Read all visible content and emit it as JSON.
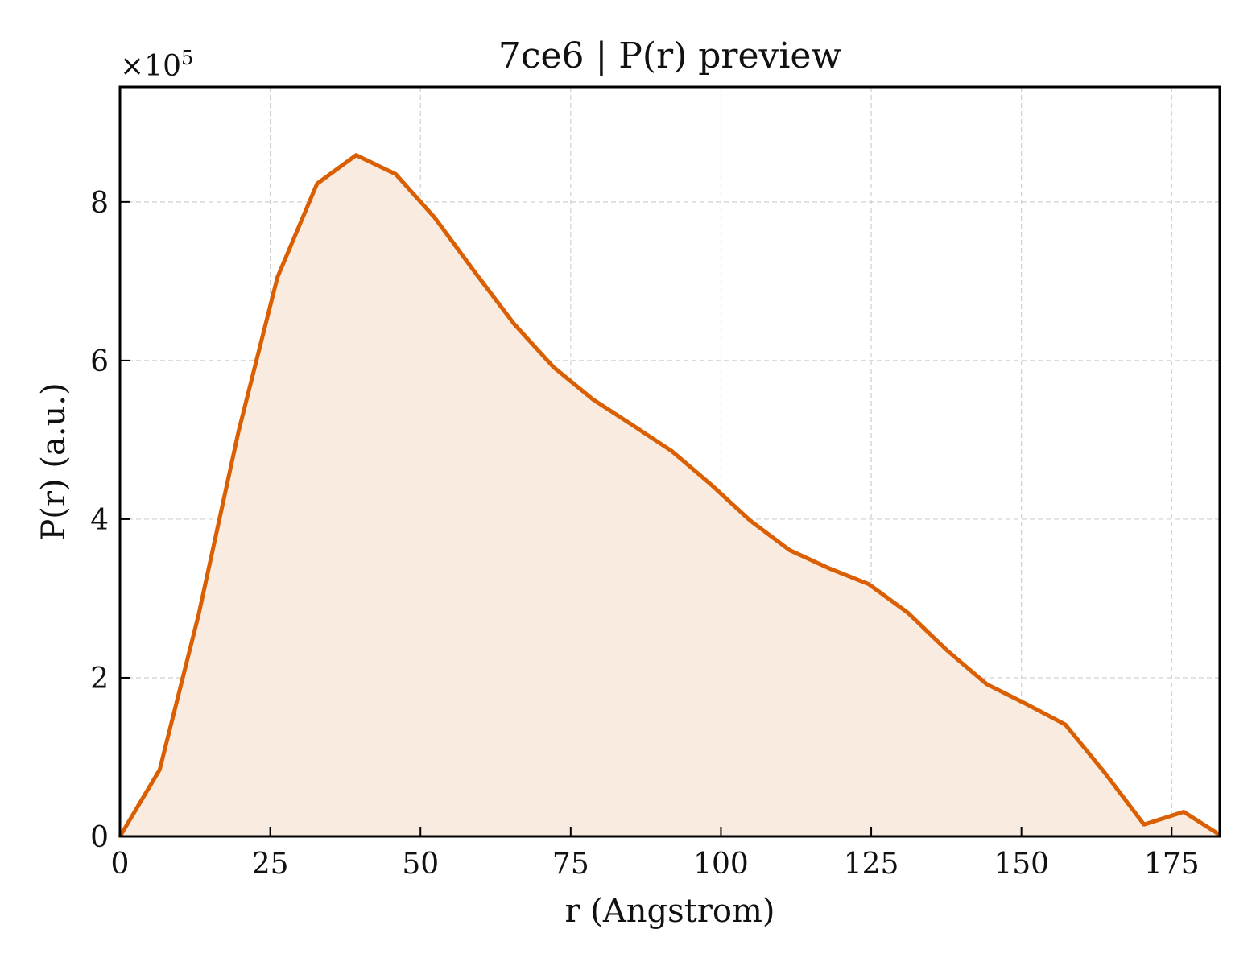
{
  "chart_data": {
    "type": "area",
    "title": "7ce6 | P(r) preview",
    "xlabel": "r (Angstrom)",
    "ylabel": "P(r) (a.u.)",
    "y_multiplier_label": "×10",
    "y_multiplier_exponent": "5",
    "xlim": [
      0,
      183
    ],
    "ylim": [
      0,
      9.45
    ],
    "y_scale": 100000,
    "xticks": [
      0,
      25,
      50,
      75,
      100,
      125,
      150,
      175
    ],
    "yticks": [
      0,
      2,
      4,
      6,
      8
    ],
    "grid": true,
    "colors": {
      "line": "#d95f02",
      "fill": "#f9ebe0"
    },
    "series": [
      {
        "x": [
          0,
          6.6,
          13.1,
          19.7,
          26.2,
          32.8,
          39.3,
          45.9,
          52.4,
          59.0,
          65.6,
          72.1,
          78.7,
          85.2,
          91.8,
          98.3,
          104.9,
          111.4,
          118.0,
          124.6,
          131.1,
          137.7,
          144.2,
          150.8,
          157.3,
          163.9,
          170.4,
          177.0,
          183.0
        ],
        "values": [
          0,
          0.84,
          2.8,
          5.1,
          7.05,
          8.23,
          8.59,
          8.35,
          7.8,
          7.12,
          6.46,
          5.92,
          5.51,
          5.19,
          4.86,
          4.44,
          3.98,
          3.61,
          3.38,
          3.18,
          2.82,
          2.34,
          1.92,
          1.67,
          1.41,
          0.8,
          0.15,
          0.31,
          0.02
        ]
      }
    ]
  }
}
